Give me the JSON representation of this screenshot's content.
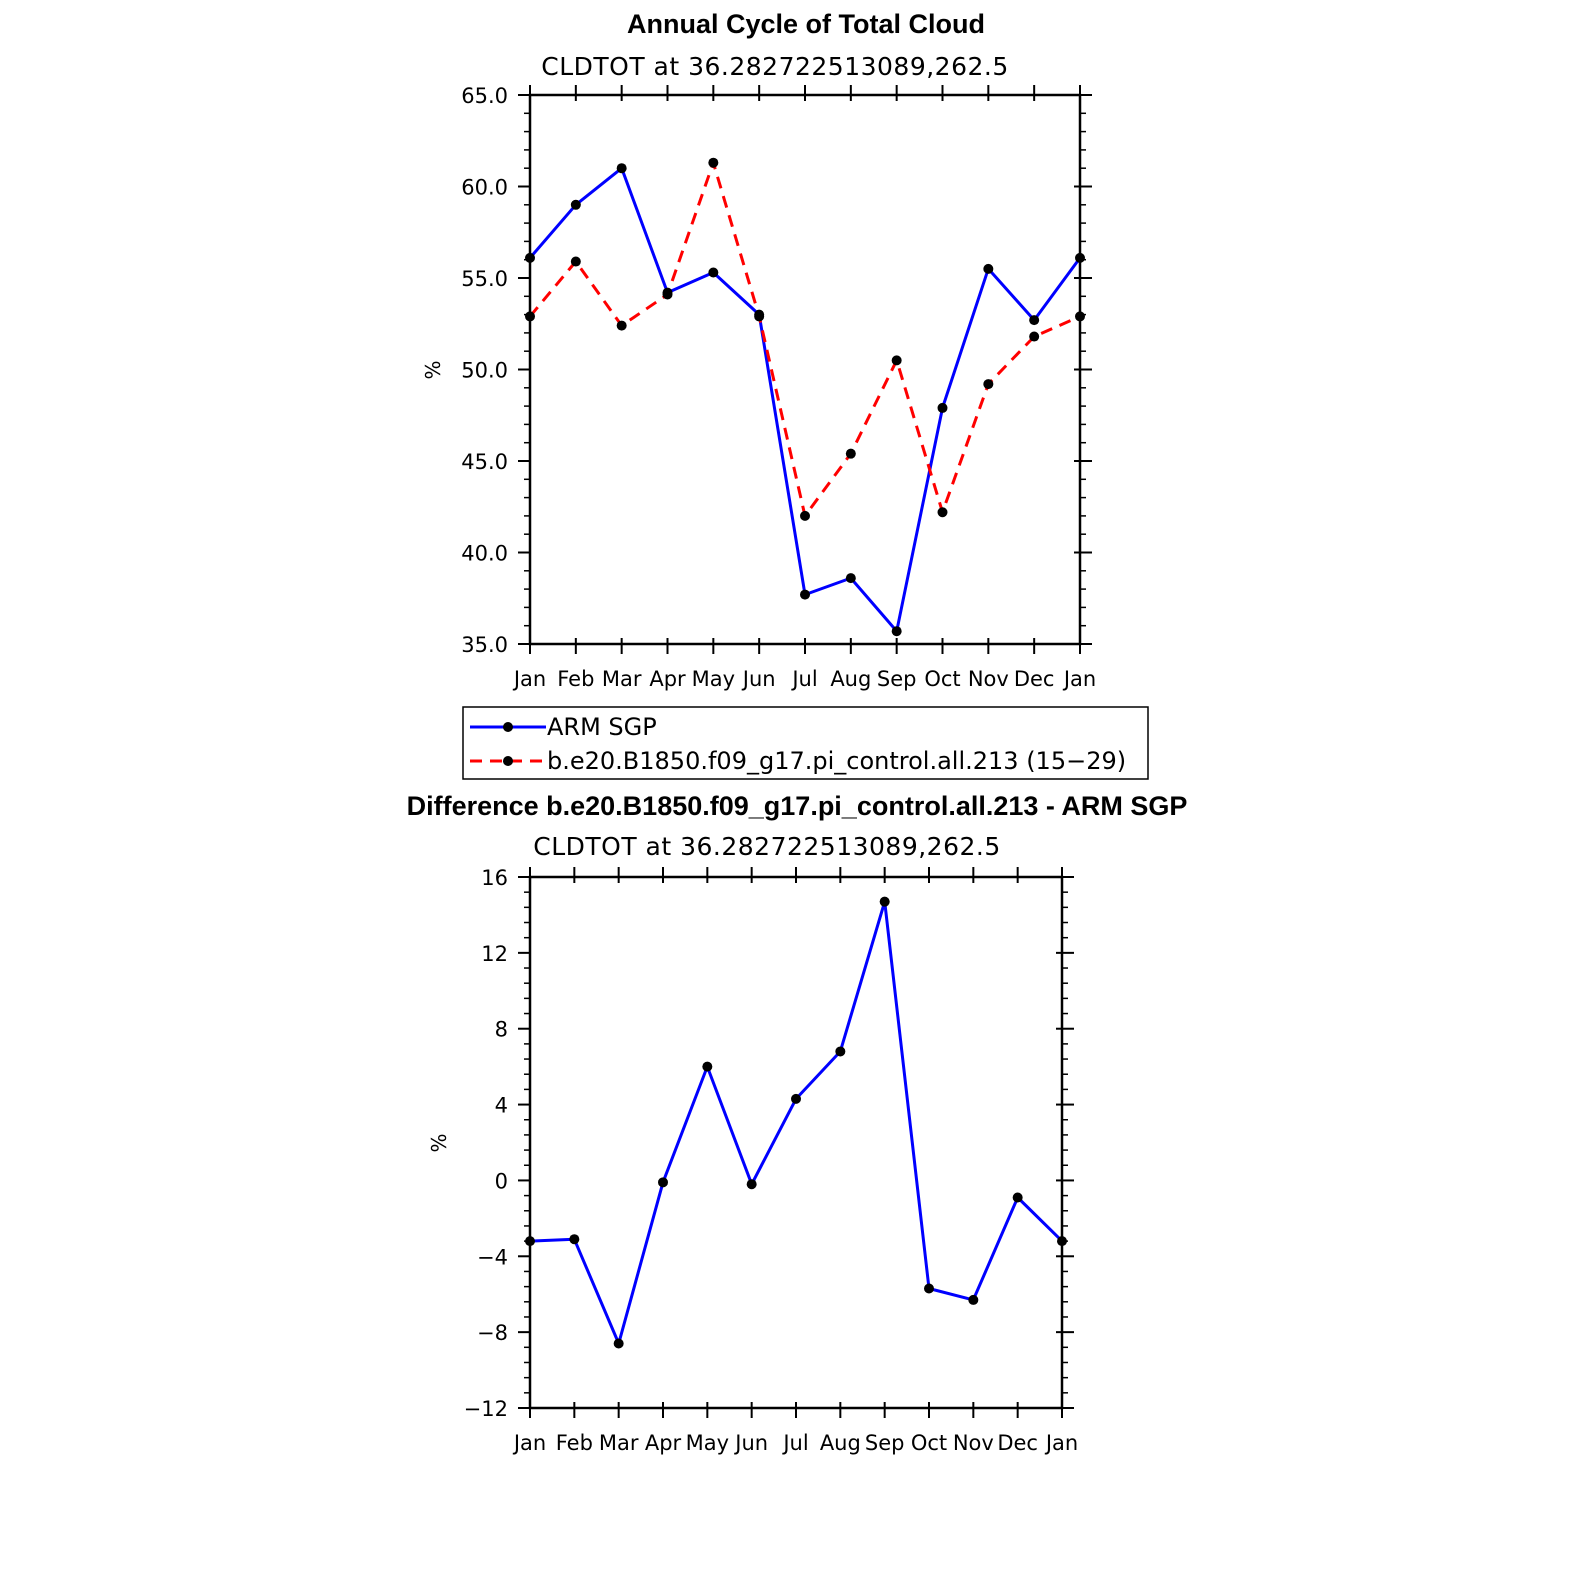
{
  "chart_data": [
    {
      "type": "line",
      "title": "Annual Cycle of Total Cloud",
      "subtitle": "CLDTOT at 36.282722513089,262.5",
      "ylabel": "%",
      "ylim": [
        35.0,
        65.0
      ],
      "yticks": [
        35.0,
        40.0,
        45.0,
        50.0,
        55.0,
        60.0,
        65.0
      ],
      "ytick_labels": [
        "35.0",
        "40.0",
        "45.0",
        "50.0",
        "55.0",
        "60.0",
        "65.0"
      ],
      "categories": [
        "Jan",
        "Feb",
        "Mar",
        "Apr",
        "May",
        "Jun",
        "Jul",
        "Aug",
        "Sep",
        "Oct",
        "Nov",
        "Dec",
        "Jan"
      ],
      "legend_placement": "below",
      "series": [
        {
          "name": "ARM SGP",
          "color": "#0000ff",
          "style": "solid",
          "values": [
            56.1,
            59.0,
            61.0,
            54.2,
            55.3,
            53.0,
            37.7,
            38.6,
            35.7,
            47.9,
            55.5,
            52.7,
            56.1
          ]
        },
        {
          "name": "b.e20.B1850.f09_g17.pi_control.all.213 (15−29)",
          "color": "#ff0000",
          "style": "dashed",
          "values": [
            52.9,
            55.9,
            52.4,
            54.1,
            61.3,
            52.9,
            42.0,
            45.4,
            50.5,
            42.2,
            49.2,
            51.8,
            52.9
          ]
        }
      ]
    },
    {
      "type": "line",
      "title": "Difference b.e20.B1850.f09_g17.pi_control.all.213 - ARM SGP",
      "subtitle": "CLDTOT at 36.282722513089,262.5",
      "ylabel": "%",
      "ylim": [
        -12,
        16
      ],
      "yticks": [
        -12,
        -8,
        -4,
        0,
        4,
        8,
        12,
        16
      ],
      "ytick_labels": [
        "−12",
        "−8",
        "−4",
        "0",
        "4",
        "8",
        "12",
        "16"
      ],
      "categories": [
        "Jan",
        "Feb",
        "Mar",
        "Apr",
        "May",
        "Jun",
        "Jul",
        "Aug",
        "Sep",
        "Oct",
        "Nov",
        "Dec",
        "Jan"
      ],
      "series": [
        {
          "color": "#0000ff",
          "style": "solid",
          "values": [
            -3.2,
            -3.1,
            -8.6,
            -0.1,
            6.0,
            -0.2,
            4.3,
            6.8,
            14.7,
            -5.7,
            -6.3,
            -0.9,
            -3.2
          ]
        }
      ]
    }
  ]
}
